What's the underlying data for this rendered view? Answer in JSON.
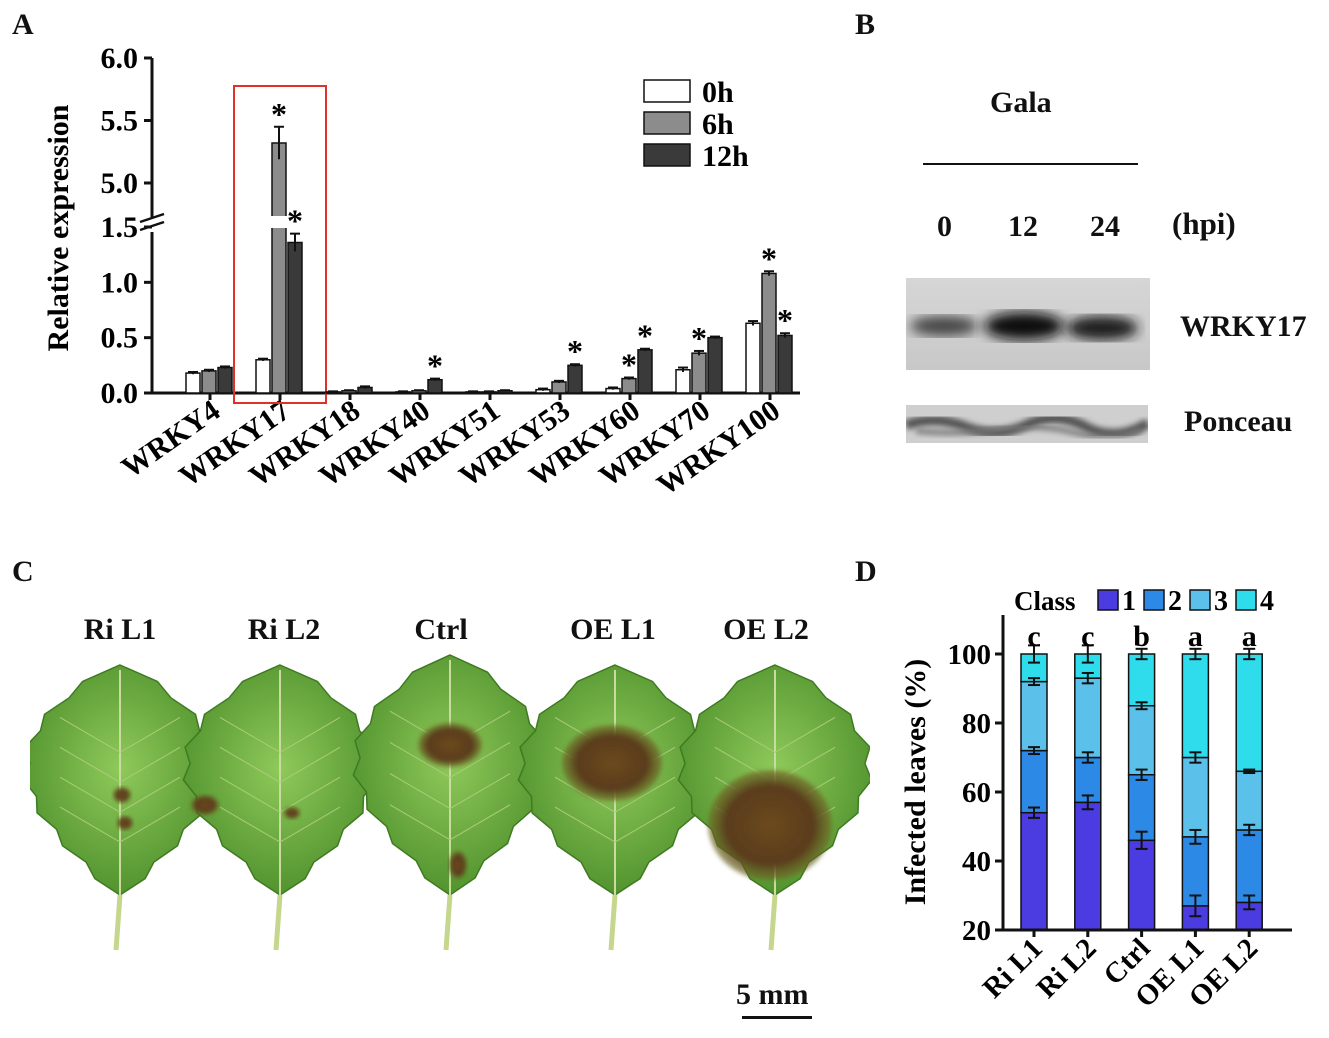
{
  "panels": {
    "a": "A",
    "b": "B",
    "c": "C",
    "d": "D"
  },
  "chart_data": [
    {
      "type": "bar",
      "panel": "A",
      "ylabel": "Relative expression",
      "broken_axis": true,
      "ylim_lower": [
        0,
        1.5
      ],
      "ylim_upper": [
        5.0,
        6.0
      ],
      "yticks_lower": [
        "0.0",
        "0.5",
        "1.0",
        "1.5"
      ],
      "yticks_upper": [
        "5.0",
        "5.5",
        "6.0"
      ],
      "categories": [
        "WRKY4",
        "WRKY17",
        "WRKY18",
        "WRKY40",
        "WRKY51",
        "WRKY53",
        "WRKY60",
        "WRKY70",
        "WRKY100"
      ],
      "series": [
        {
          "name": "0h",
          "color": "#ffffff",
          "values": [
            0.18,
            0.3,
            0.01,
            0.01,
            0.01,
            0.03,
            0.04,
            0.21,
            0.63
          ],
          "errors": [
            0.01,
            0.01,
            0.005,
            0.005,
            0.005,
            0.01,
            0.01,
            0.02,
            0.02
          ]
        },
        {
          "name": "6h",
          "color": "#8c8c8c",
          "values": [
            0.2,
            5.32,
            0.02,
            0.02,
            0.01,
            0.1,
            0.13,
            0.36,
            1.08
          ],
          "errors": [
            0.01,
            0.13,
            0.005,
            0.005,
            0.005,
            0.01,
            0.01,
            0.02,
            0.02
          ]
        },
        {
          "name": "12h",
          "color": "#3a3a3a",
          "values": [
            0.23,
            1.36,
            0.05,
            0.12,
            0.02,
            0.25,
            0.39,
            0.5,
            0.52
          ],
          "errors": [
            0.01,
            0.08,
            0.01,
            0.01,
            0.005,
            0.01,
            0.01,
            0.01,
            0.02
          ]
        }
      ],
      "significance": [
        {
          "category": "WRKY17",
          "series": "6h",
          "mark": "*"
        },
        {
          "category": "WRKY17",
          "series": "12h",
          "mark": "*"
        },
        {
          "category": "WRKY40",
          "series": "12h",
          "mark": "*"
        },
        {
          "category": "WRKY53",
          "series": "12h",
          "mark": "*"
        },
        {
          "category": "WRKY60",
          "series": "6h",
          "mark": "*"
        },
        {
          "category": "WRKY60",
          "series": "12h",
          "mark": "*"
        },
        {
          "category": "WRKY70",
          "series": "6h",
          "mark": "*"
        },
        {
          "category": "WRKY100",
          "series": "6h",
          "mark": "*"
        },
        {
          "category": "WRKY100",
          "series": "12h",
          "mark": "*"
        }
      ],
      "highlight": "WRKY17",
      "highlight_color": "#e0302a",
      "legend_position": "top-right"
    },
    {
      "type": "bar",
      "panel": "D",
      "stacked": true,
      "ylabel": "Infected leaves (%)",
      "ylim": [
        20,
        100
      ],
      "yticks": [
        "20",
        "40",
        "60",
        "80",
        "100"
      ],
      "legend_title": "Class",
      "legend_position": "top",
      "categories": [
        "Ri L1",
        "Ri L2",
        "Ctrl",
        "OE L1",
        "OE L2"
      ],
      "letters": [
        "c",
        "c",
        "b",
        "a",
        "a"
      ],
      "boundaries": [
        {
          "class1_top": 54,
          "class2_top": 72,
          "class3_top": 92,
          "class4_top": 100
        },
        {
          "class1_top": 57,
          "class2_top": 70,
          "class3_top": 93,
          "class4_top": 100
        },
        {
          "class1_top": 46,
          "class2_top": 65,
          "class3_top": 85,
          "class4_top": 100
        },
        {
          "class1_top": 27,
          "class2_top": 47,
          "class3_top": 70,
          "class4_top": 100
        },
        {
          "class1_top": 28,
          "class2_top": 49,
          "class3_top": 66,
          "class4_top": 100
        }
      ],
      "errors": [
        [
          1.5,
          1,
          1,
          2.5
        ],
        [
          2,
          1.5,
          1.5,
          2.5
        ],
        [
          2.5,
          1.5,
          1,
          1.5
        ],
        [
          3,
          2,
          1.5,
          1.5
        ],
        [
          2,
          1.5,
          0.5,
          1.5
        ]
      ],
      "series": [
        {
          "name": "1",
          "color": "#4a3ce0"
        },
        {
          "name": "2",
          "color": "#2c8ae6"
        },
        {
          "name": "3",
          "color": "#5cc1ea"
        },
        {
          "name": "4",
          "color": "#2edcec"
        }
      ]
    }
  ],
  "panel_b": {
    "title": "Gala",
    "timepoints": [
      "0",
      "12",
      "24"
    ],
    "unit": "(hpi)",
    "band1_label": "WRKY17",
    "band2_label": "Ponceau"
  },
  "panel_c": {
    "leaves": [
      "Ri L1",
      "Ri L2",
      "Ctrl",
      "OE L1",
      "OE L2"
    ],
    "scale_label": "5 mm"
  }
}
